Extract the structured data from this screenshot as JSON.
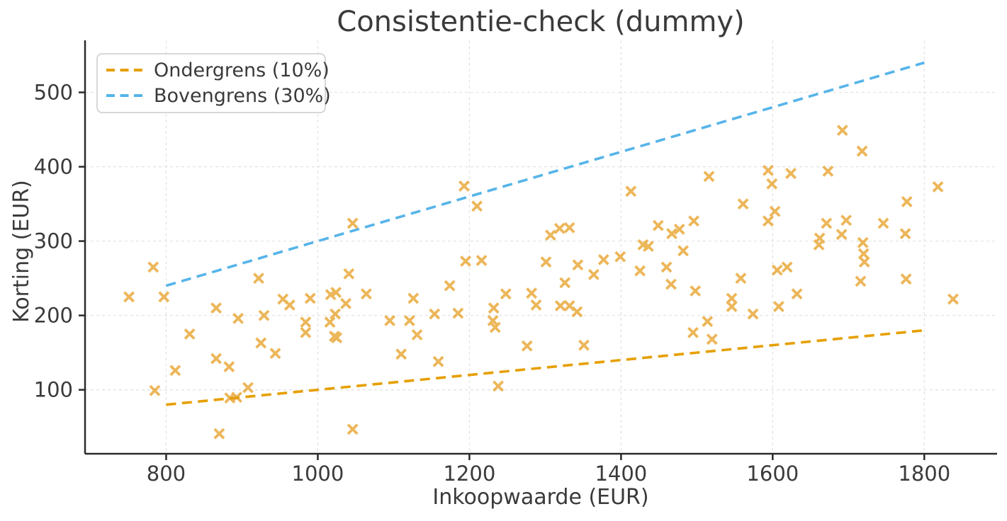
{
  "chart_data": {
    "type": "scatter",
    "title": "Consistentie-check (dummy)",
    "xlabel": "Inkoopwaarde (EUR)",
    "ylabel": "Korting (EUR)",
    "xlim": [
      693,
      1896
    ],
    "ylim": [
      14,
      570
    ],
    "xticks": [
      800,
      1000,
      1200,
      1400,
      1600,
      1800
    ],
    "yticks": [
      100,
      200,
      300,
      400,
      500
    ],
    "grid": true,
    "legend_position": "upper-left",
    "legend": {
      "entries": [
        {
          "label": "Ondergrens (10%)",
          "color": "#E69F00",
          "style": "dashed"
        },
        {
          "label": "Bovengrens (30%)",
          "color": "#56B4E9",
          "style": "dashed"
        }
      ]
    },
    "lines": [
      {
        "name": "ondergrens-10pct",
        "color": "#E69F00",
        "dashed": true,
        "x": [
          800,
          1800
        ],
        "y": [
          80,
          180
        ]
      },
      {
        "name": "bovengrens-30pct",
        "color": "#56B4E9",
        "dashed": true,
        "x": [
          800,
          1800
        ],
        "y": [
          240,
          540
        ]
      }
    ],
    "series": [
      {
        "name": "korting-punten",
        "marker": "x",
        "color": "#E59B1A",
        "opacity": 0.72,
        "points": [
          [
            751,
            225
          ],
          [
            783,
            265
          ],
          [
            785,
            99
          ],
          [
            797,
            225
          ],
          [
            812,
            126
          ],
          [
            831,
            175
          ],
          [
            866,
            210
          ],
          [
            866,
            142
          ],
          [
            870,
            41
          ],
          [
            883,
            131
          ],
          [
            884,
            89
          ],
          [
            893,
            90
          ],
          [
            895,
            196
          ],
          [
            908,
            103
          ],
          [
            922,
            250
          ],
          [
            925,
            163
          ],
          [
            929,
            200
          ],
          [
            944,
            149
          ],
          [
            954,
            222
          ],
          [
            963,
            214
          ],
          [
            984,
            191
          ],
          [
            984,
            177
          ],
          [
            990,
            223
          ],
          [
            1016,
            191
          ],
          [
            1017,
            228
          ],
          [
            1022,
            172
          ],
          [
            1025,
            170
          ],
          [
            1023,
            202
          ],
          [
            1024,
            231
          ],
          [
            1037,
            216
          ],
          [
            1041,
            256
          ],
          [
            1046,
            324
          ],
          [
            1046,
            47
          ],
          [
            1064,
            229
          ],
          [
            1095,
            193
          ],
          [
            1110,
            148
          ],
          [
            1121,
            193
          ],
          [
            1126,
            223
          ],
          [
            1131,
            174
          ],
          [
            1154,
            202
          ],
          [
            1159,
            138
          ],
          [
            1174,
            240
          ],
          [
            1185,
            203
          ],
          [
            1193,
            374
          ],
          [
            1195,
            273
          ],
          [
            1210,
            347
          ],
          [
            1216,
            274
          ],
          [
            1231,
            193
          ],
          [
            1232,
            210
          ],
          [
            1234,
            184
          ],
          [
            1238,
            105
          ],
          [
            1248,
            229
          ],
          [
            1276,
            159
          ],
          [
            1282,
            230
          ],
          [
            1288,
            214
          ],
          [
            1301,
            272
          ],
          [
            1307,
            308
          ],
          [
            1319,
            317
          ],
          [
            1320,
            213
          ],
          [
            1326,
            244
          ],
          [
            1332,
            318
          ],
          [
            1332,
            213
          ],
          [
            1342,
            205
          ],
          [
            1343,
            268
          ],
          [
            1351,
            160
          ],
          [
            1364,
            255
          ],
          [
            1377,
            275
          ],
          [
            1399,
            279
          ],
          [
            1413,
            367
          ],
          [
            1425,
            260
          ],
          [
            1429,
            295
          ],
          [
            1436,
            293
          ],
          [
            1449,
            321
          ],
          [
            1460,
            265
          ],
          [
            1466,
            242
          ],
          [
            1467,
            310
          ],
          [
            1477,
            316
          ],
          [
            1482,
            287
          ],
          [
            1496,
            327
          ],
          [
            1498,
            233
          ],
          [
            1495,
            177
          ],
          [
            1514,
            192
          ],
          [
            1516,
            387
          ],
          [
            1520,
            168
          ],
          [
            1546,
            223
          ],
          [
            1546,
            212
          ],
          [
            1558,
            250
          ],
          [
            1561,
            350
          ],
          [
            1574,
            202
          ],
          [
            1594,
            395
          ],
          [
            1594,
            327
          ],
          [
            1599,
            377
          ],
          [
            1603,
            340
          ],
          [
            1606,
            261
          ],
          [
            1608,
            212
          ],
          [
            1619,
            265
          ],
          [
            1624,
            391
          ],
          [
            1632,
            229
          ],
          [
            1661,
            295
          ],
          [
            1662,
            304
          ],
          [
            1671,
            324
          ],
          [
            1673,
            394
          ],
          [
            1691,
            309
          ],
          [
            1692,
            449
          ],
          [
            1697,
            328
          ],
          [
            1716,
            246
          ],
          [
            1718,
            421
          ],
          [
            1719,
            298
          ],
          [
            1720,
            283
          ],
          [
            1721,
            272
          ],
          [
            1746,
            324
          ],
          [
            1775,
            310
          ],
          [
            1776,
            249
          ],
          [
            1777,
            353
          ],
          [
            1818,
            373
          ],
          [
            1838,
            222
          ]
        ]
      }
    ],
    "style": {
      "grid_color": "#e3e3e3",
      "spine_color": "#2b2b2b",
      "text_color": "#3a3a3a",
      "background": "#ffffff",
      "legend_border": "#cccccc"
    }
  }
}
